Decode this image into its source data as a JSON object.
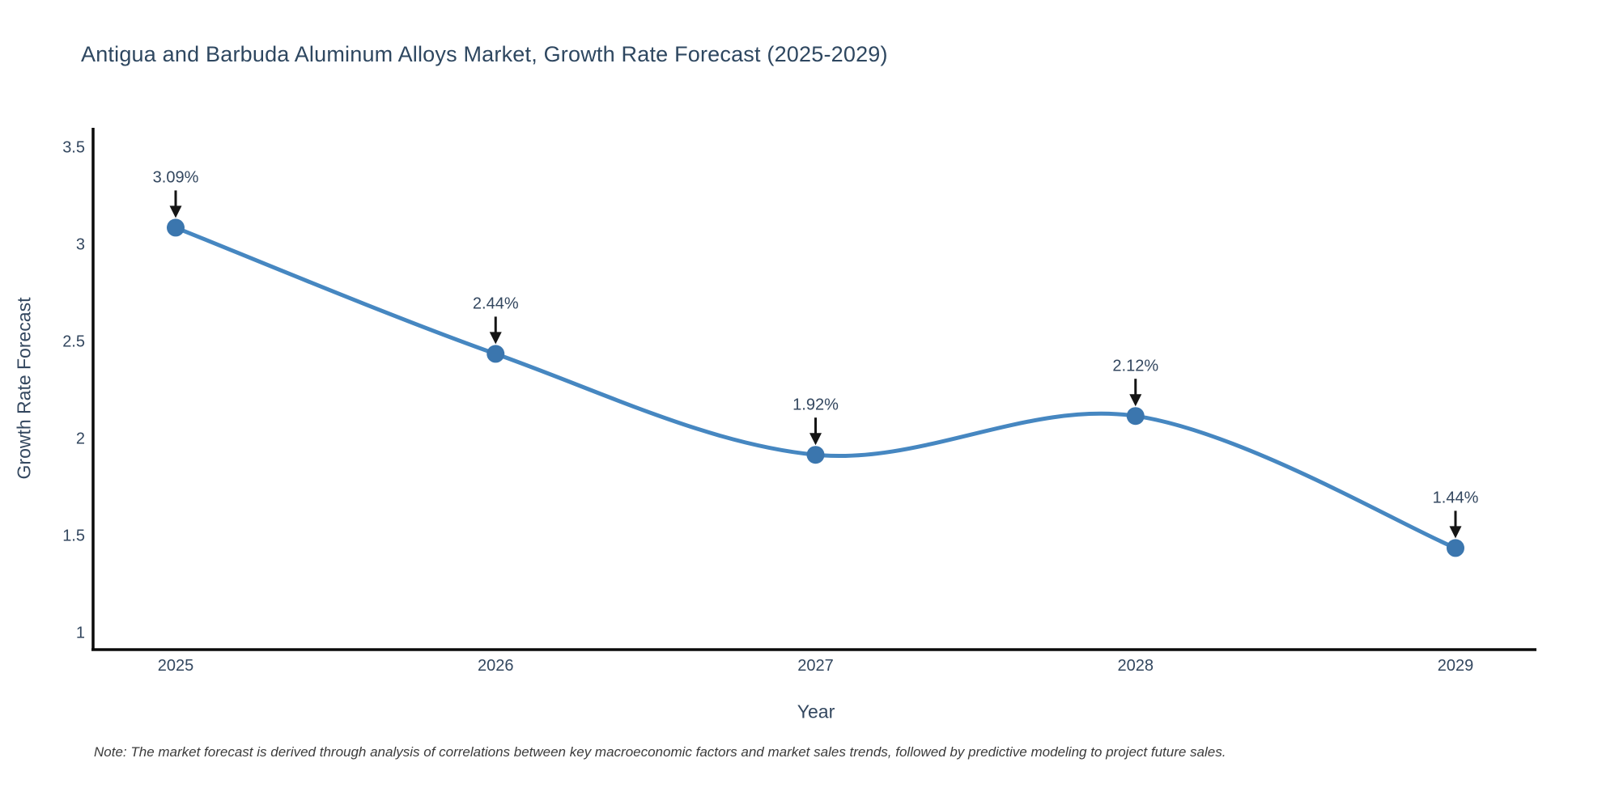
{
  "title": "Antigua and Barbuda Aluminum Alloys Market, Growth Rate Forecast (2025-2029)",
  "note": {
    "text": "Note: The market forecast is derived through analysis of correlations between key macroeconomic factors and market sales trends, followed by predictive modeling to project future sales."
  },
  "chart_data": {
    "type": "line",
    "line_shape": "spline",
    "title": "Antigua and Barbuda Aluminum Alloys Market, Growth Rate Forecast (2025-2029)",
    "xlabel": "Year",
    "ylabel": "Growth Rate Forecast",
    "x": [
      2025,
      2026,
      2027,
      2028,
      2029
    ],
    "values": [
      3.09,
      2.44,
      1.92,
      2.12,
      1.44
    ],
    "annotations": [
      "3.09%",
      "2.44%",
      "1.92%",
      "2.12%",
      "1.44%"
    ],
    "xtick_labels": [
      "2025",
      "2026",
      "2027",
      "2028",
      "2029"
    ],
    "ytick_labels": [
      "3.5",
      "3",
      "2.5",
      "2",
      "1.5",
      "1"
    ],
    "yticks": [
      3.5,
      3,
      2.5,
      2,
      1.5,
      1
    ],
    "ylim": [
      0.92,
      3.68
    ],
    "grid": false,
    "legend": "none",
    "colors": {
      "line": "#4687c1",
      "marker": "#3b76ae",
      "arrow": "#151515",
      "axis": "#0a0a0a",
      "text": "#33475f",
      "note_text": "#3b3b3b",
      "background": "#ffffff"
    }
  }
}
